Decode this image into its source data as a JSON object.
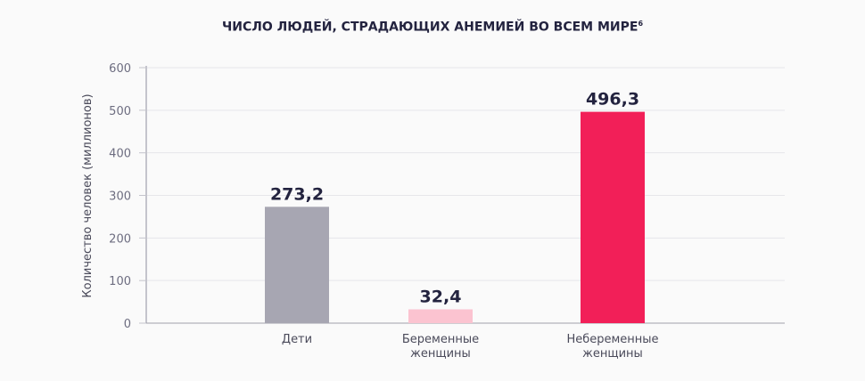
{
  "chart_data": {
    "type": "bar",
    "title": "ЧИСЛО ЛЮДЕЙ, СТРАДАЮЩИХ АНЕМИЕЙ ВО ВСЕМ МИРЕ",
    "title_superscript": "6",
    "ylabel": "Количество человек (миллионов)",
    "xlabel": "",
    "ylim": [
      0,
      600
    ],
    "yticks": [
      "0",
      "100",
      "200",
      "300",
      "400",
      "500",
      "600"
    ],
    "grid": true,
    "categories": [
      [
        "Дети"
      ],
      [
        "Беременные",
        "женщины"
      ],
      [
        "Небеременные",
        "женщины"
      ]
    ],
    "values": [
      273.2,
      32.4,
      496.3
    ],
    "data_labels": [
      "273,2",
      "32,4",
      "496,3"
    ],
    "colors": [
      "#a7a6b2",
      "#fbc3d0",
      "#f21f58"
    ]
  }
}
